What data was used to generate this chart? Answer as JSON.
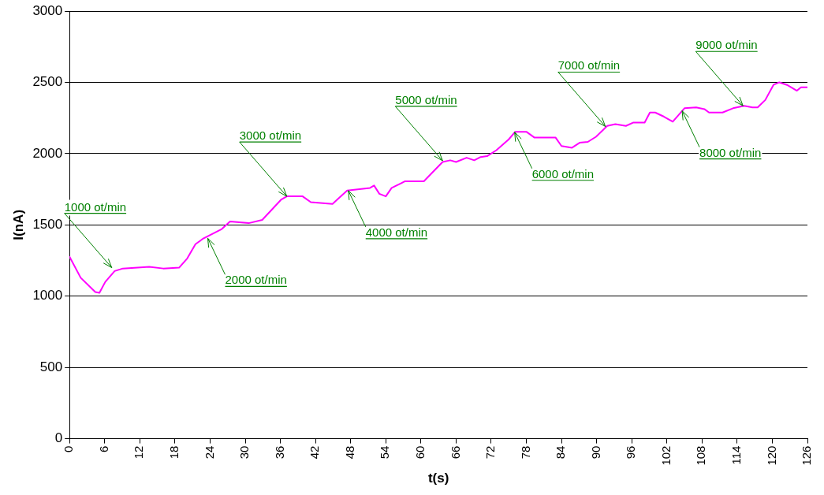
{
  "chart_data": {
    "type": "line",
    "xlabel": "t(s)",
    "ylabel": "I(nA)",
    "xlim": [
      0,
      126
    ],
    "xticks": [
      0,
      6,
      12,
      18,
      24,
      30,
      36,
      42,
      48,
      54,
      60,
      66,
      72,
      78,
      84,
      90,
      96,
      102,
      108,
      114,
      120,
      126
    ],
    "ylim": [
      0,
      3000
    ],
    "yticks": [
      0,
      500,
      1000,
      1500,
      2000,
      2500,
      3000
    ],
    "grid": "y",
    "legend": false,
    "marker": "none",
    "line_style": "solid",
    "series": [
      {
        "color": "#ff00ff",
        "x": [
          0,
          1.9,
          4.4,
          5.1,
          6.1,
          7.7,
          9.1,
          13.6,
          16,
          18.7,
          20.1,
          21.5,
          22.9,
          26,
          27.4,
          30.6,
          32.9,
          36.1,
          37.1,
          39.8,
          41.2,
          44.9,
          47.4,
          51.3,
          52,
          52.9,
          54,
          55,
          57.3,
          60.5,
          63.7,
          65,
          66,
          67.8,
          69.1,
          70.2,
          71.3,
          72.9,
          75,
          76.1,
          78,
          79.4,
          83,
          84,
          85.8,
          87.1,
          88.5,
          89.9,
          91.8,
          93.2,
          95,
          96.3,
          98.2,
          99.1,
          100,
          101.5,
          103,
          105,
          107,
          108.4,
          109.2,
          111.5,
          113.3,
          115.2,
          116.6,
          117.5,
          118.8,
          120.2,
          121.2,
          122.5,
          124.2,
          124.9,
          126
        ],
        "values": [
          1276,
          1129,
          1029,
          1023,
          1100,
          1176,
          1194,
          1206,
          1194,
          1200,
          1265,
          1365,
          1406,
          1471,
          1524,
          1512,
          1535,
          1676,
          1700,
          1700,
          1659,
          1647,
          1741,
          1759,
          1776,
          1718,
          1700,
          1759,
          1806,
          1806,
          1941,
          1953,
          1941,
          1971,
          1953,
          1976,
          1982,
          2024,
          2100,
          2153,
          2153,
          2112,
          2112,
          2053,
          2041,
          2076,
          2082,
          2118,
          2194,
          2206,
          2194,
          2218,
          2218,
          2288,
          2288,
          2259,
          2224,
          2318,
          2324,
          2312,
          2288,
          2288,
          2318,
          2335,
          2324,
          2324,
          2376,
          2482,
          2500,
          2482,
          2441,
          2465,
          2465
        ]
      }
    ],
    "annotations": [
      {
        "text": "1000 ot/min",
        "x": 7.2,
        "y": 1200
      },
      {
        "text": "2000 ot/min",
        "x": 23.6,
        "y": 1406
      },
      {
        "text": "3000 ot/min",
        "x": 37.1,
        "y": 1700
      },
      {
        "text": "4000 ot/min",
        "x": 47.6,
        "y": 1740
      },
      {
        "text": "5000 ot/min",
        "x": 63.7,
        "y": 1950
      },
      {
        "text": "6000 ot/min",
        "x": 76,
        "y": 2150
      },
      {
        "text": "7000 ot/min",
        "x": 91.5,
        "y": 2190
      },
      {
        "text": "8000 ot/min",
        "x": 104.6,
        "y": 2300
      },
      {
        "text": "9000 ot/min",
        "x": 115,
        "y": 2335
      }
    ]
  }
}
